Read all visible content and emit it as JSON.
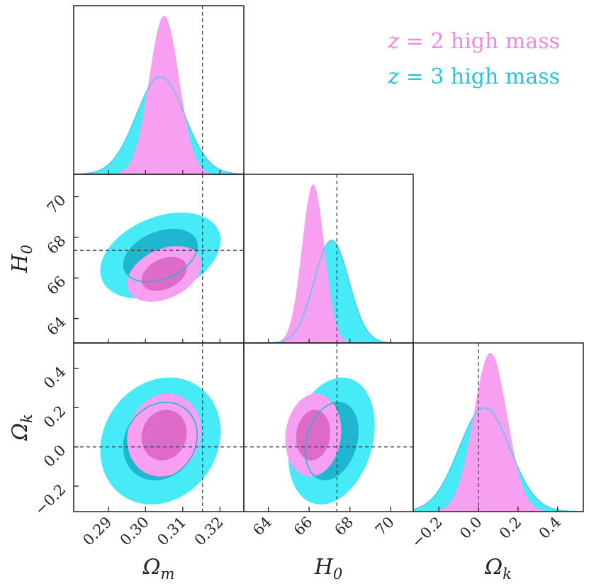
{
  "chart_data": {
    "type": "corner",
    "parameters": [
      "Ωm",
      "H0",
      "Ωk"
    ],
    "axis_labels": {
      "Om": {
        "main": "Ω",
        "sub": "m"
      },
      "H0": {
        "main": "H",
        "sub": "0"
      },
      "Ok": {
        "main": "Ω",
        "sub": "k"
      }
    },
    "fiducial": {
      "Om": 0.3153,
      "H0": 67.36,
      "Ok": 0.0
    },
    "ranges": {
      "Om": [
        0.2807,
        0.3264
      ],
      "H0": [
        62.8,
        71.1
      ],
      "Ok": [
        -0.33,
        0.53
      ]
    },
    "ticks": {
      "Om": {
        "values": [
          0.29,
          0.3,
          0.31,
          0.32
        ],
        "labels": [
          "0.29",
          "0.30",
          "0.31",
          "0.32"
        ]
      },
      "H0": {
        "values": [
          64,
          66,
          68,
          70
        ],
        "labels": [
          "64",
          "66",
          "68",
          "70"
        ]
      },
      "Ok": {
        "values": [
          -0.2,
          0.0,
          0.2,
          0.4
        ],
        "labels": [
          "−0.2",
          "0.0",
          "0.2",
          "0.4"
        ]
      }
    },
    "series": [
      {
        "name": "z = 2 high mass",
        "name_parts": {
          "var": "z",
          "rest": " = 2 high mass"
        },
        "color_outer": "#f79ff0",
        "color_inner": "#de6bc8",
        "fill_1d": "#f79ff0",
        "mean": {
          "Om": 0.305,
          "H0": 66.2,
          "Ok": 0.06
        },
        "sigma": {
          "Om": 0.004,
          "H0": 0.55,
          "Ok": 0.085
        },
        "corr": {
          "Om_H0": 0.35,
          "Om_Ok": 0.1,
          "H0_Ok": 0.1
        }
      },
      {
        "name": "z = 3 high mass",
        "name_parts": {
          "var": "z",
          "rest": " = 3 high mass"
        },
        "color_outer": "#47eaf7",
        "color_inner": "#1fb6cf",
        "fill_1d": "#47eaf7",
        "mean": {
          "Om": 0.304,
          "H0": 67.1,
          "Ok": 0.03
        },
        "sigma": {
          "Om": 0.0065,
          "H0": 0.85,
          "Ok": 0.13
        },
        "corr": {
          "Om_H0": 0.35,
          "Om_Ok": 0.15,
          "H0_Ok": 0.25
        }
      }
    ],
    "legend_position": "top-right",
    "grid": false
  }
}
